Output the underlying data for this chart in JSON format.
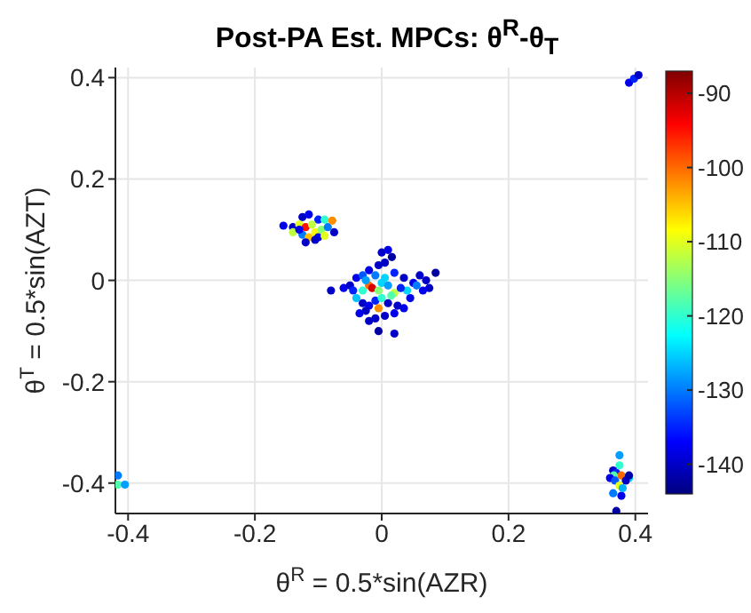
{
  "chart_data": {
    "type": "scatter",
    "title": "Post-PA Est. MPCs: θ$^{R}$-θ$_{T}$",
    "xlabel": "θ$^{R}$ = 0.5*sin(AZR)",
    "ylabel": "θ$^{T}$ = 0.5*sin(AZT)",
    "xlim": [
      -0.42,
      0.42
    ],
    "xticks": [
      -0.4,
      -0.2,
      0,
      0.2,
      0.4
    ],
    "ylim": [
      -0.46,
      0.42
    ],
    "yticks": [
      -0.4,
      -0.2,
      0,
      0.2,
      0.4
    ],
    "clim": [
      -144,
      -87
    ],
    "cticks": [
      -140,
      -130,
      -120,
      -110,
      -100,
      -90
    ],
    "grid": true,
    "marker": "circle",
    "x": [
      0.39,
      0.398,
      0.405,
      -0.416,
      -0.416,
      -0.405,
      0.375,
      0.375,
      0.365,
      0.37,
      0.378,
      0.366,
      0.39,
      0.36,
      0.368,
      0.385,
      0.375,
      0.39,
      0.365,
      0.378,
      0.37,
      0.38,
      -0.155,
      -0.14,
      -0.125,
      -0.115,
      -0.1,
      -0.09,
      -0.13,
      -0.12,
      -0.11,
      -0.105,
      -0.095,
      -0.085,
      -0.14,
      -0.125,
      -0.115,
      -0.1,
      -0.075,
      -0.12,
      -0.105,
      -0.078,
      -0.13,
      -0.09,
      -0.08,
      -0.06,
      -0.05,
      -0.04,
      -0.03,
      -0.02,
      -0.005,
      0.005,
      0.016,
      0.0,
      0.01,
      0.02,
      0.035,
      0.05,
      0.06,
      0.07,
      0.085,
      0.075,
      0.065,
      0.055,
      0.04,
      -0.03,
      -0.02,
      -0.015,
      -0.005,
      0.0,
      0.01,
      0.02,
      0.03,
      -0.025,
      -0.01,
      0.005,
      -0.04,
      -0.03,
      -0.02,
      -0.01,
      0.0,
      0.01,
      -0.005,
      -0.025,
      -0.035,
      -0.01,
      0.005,
      0.02,
      0.025,
      -0.02,
      -0.005,
      0.02,
      0.015,
      -0.045,
      0.045,
      0.035
    ],
    "values": [
      0.39,
      0.398,
      0.405,
      -0.385,
      -0.403,
      -0.403,
      -0.345,
      -0.365,
      -0.375,
      -0.38,
      -0.385,
      -0.385,
      -0.39,
      -0.39,
      -0.395,
      -0.395,
      -0.405,
      -0.385,
      -0.42,
      -0.425,
      -0.455,
      -0.41,
      0.108,
      0.105,
      0.125,
      0.13,
      0.12,
      0.12,
      0.11,
      0.105,
      0.11,
      0.095,
      0.1,
      0.105,
      0.095,
      0.09,
      0.085,
      0.085,
      0.095,
      0.075,
      0.08,
      0.118,
      0.1,
      0.088,
      -0.02,
      -0.015,
      -0.01,
      0.005,
      0.01,
      0.02,
      0.03,
      0.035,
      0.046,
      0.055,
      0.06,
      0.015,
      0.005,
      -0.005,
      0.01,
      0.0,
      0.015,
      -0.015,
      -0.02,
      -0.01,
      -0.02,
      -0.02,
      -0.01,
      -0.015,
      -0.02,
      -0.005,
      -0.01,
      -0.025,
      -0.015,
      0.0,
      0.01,
      0.005,
      -0.035,
      -0.045,
      -0.05,
      -0.04,
      -0.035,
      -0.045,
      -0.055,
      -0.06,
      -0.065,
      -0.075,
      -0.07,
      -0.065,
      -0.05,
      -0.08,
      -0.1,
      -0.105,
      -0.03,
      -0.02,
      -0.035,
      -0.055
    ],
    "cvalues": [
      -138,
      -135,
      -140,
      -130,
      -118,
      -128,
      -128,
      -120,
      -140,
      -135,
      -100,
      -118,
      -125,
      -138,
      -132,
      -140,
      -110,
      -142,
      -130,
      -138,
      -142,
      -127,
      -138,
      -140,
      -140,
      -138,
      -135,
      -120,
      -110,
      -95,
      -112,
      -108,
      -115,
      -130,
      -112,
      -130,
      -105,
      -138,
      -140,
      -140,
      -140,
      -102,
      -138,
      -110,
      -140,
      -138,
      -140,
      -138,
      -132,
      -138,
      -140,
      -140,
      -142,
      -140,
      -138,
      -135,
      -140,
      -138,
      -140,
      -140,
      -142,
      -140,
      -138,
      -130,
      -125,
      -120,
      -100,
      -92,
      -115,
      -125,
      -128,
      -112,
      -135,
      -128,
      -130,
      -125,
      -126,
      -140,
      -138,
      -135,
      -120,
      -140,
      -102,
      -140,
      -138,
      -140,
      -140,
      -138,
      -140,
      -140,
      -142,
      -140,
      -118,
      -135,
      -138,
      -138
    ]
  }
}
